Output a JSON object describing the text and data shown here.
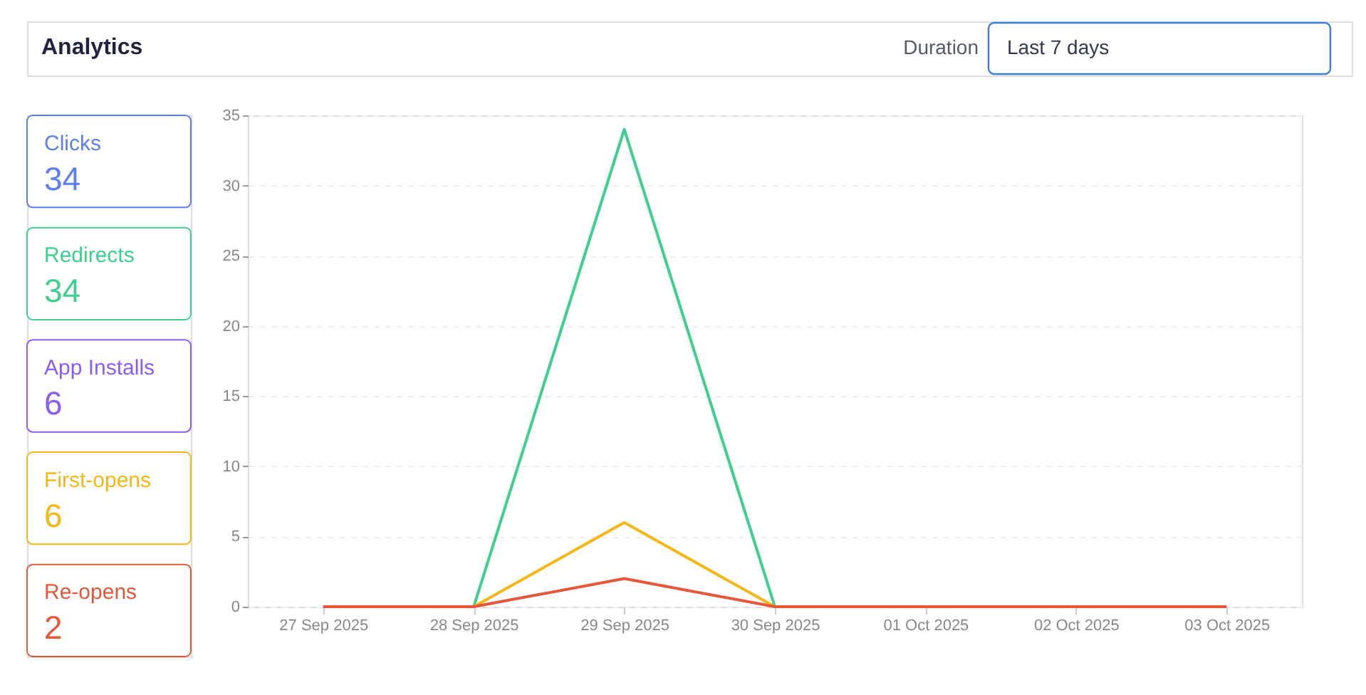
{
  "chart_data": {
    "type": "line",
    "title": "Analytics",
    "annotations": [
      "Duration",
      "Last 7 days"
    ],
    "categories": [
      "27 Sep 2025",
      "28 Sep 2025",
      "29 Sep 2025",
      "30 Sep 2025",
      "01 Oct 2025",
      "02 Oct 2025",
      "03 Oct 2025"
    ],
    "series": [
      {
        "name": "Clicks",
        "color": "#5b7ff0",
        "values": [
          null,
          null,
          null,
          null,
          null,
          null,
          null
        ]
      },
      {
        "name": "Redirects",
        "color": "#3ecf8e",
        "values": [
          null,
          0,
          34,
          0,
          null,
          null,
          null
        ]
      },
      {
        "name": "App Installs",
        "color": "#8b5cf6",
        "values": [
          null,
          null,
          null,
          null,
          null,
          null,
          null
        ]
      },
      {
        "name": "First-opens",
        "color": "#f5b616",
        "values": [
          null,
          0,
          6,
          0,
          null,
          null,
          null
        ]
      },
      {
        "name": "Re-opens",
        "color": "#e5573b",
        "values": [
          0,
          0,
          2,
          0,
          0,
          0,
          0
        ]
      }
    ],
    "totals": [
      "34",
      "34",
      "6",
      "6",
      "2"
    ],
    "ylim": [
      0,
      35
    ],
    "yticks": [
      0,
      5,
      10,
      15,
      20,
      25,
      30,
      35
    ],
    "grid": "y",
    "legend": "left",
    "marker": "none",
    "line_style": "solid"
  }
}
